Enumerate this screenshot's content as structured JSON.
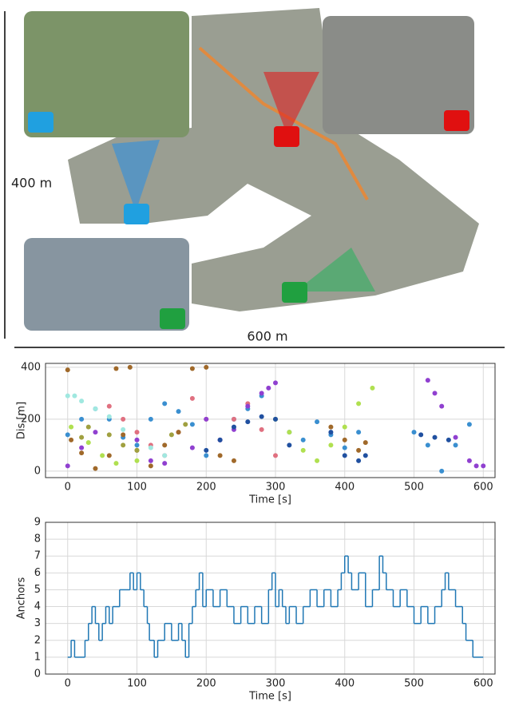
{
  "map": {
    "height_label": "400 m",
    "width_label": "600 m"
  },
  "chart_data": [
    {
      "type": "scatter",
      "y_label": "Dis [m]",
      "x_label": "Time [s]",
      "xlim": [
        -32,
        617
      ],
      "ylim": [
        -25,
        415
      ],
      "xticks": [
        0,
        100,
        200,
        300,
        400,
        500,
        600
      ],
      "yticks": [
        0,
        200,
        400
      ],
      "grid": true,
      "series": [
        {
          "color": "#3a8fd0",
          "x": [
            0,
            20,
            40,
            60,
            80,
            100,
            120,
            140,
            160,
            180,
            200,
            220,
            240,
            260,
            280,
            300,
            320,
            340,
            360,
            380,
            400,
            420,
            500,
            520,
            540,
            560,
            580
          ],
          "values": [
            140,
            200,
            240,
            200,
            130,
            100,
            200,
            260,
            230,
            180,
            60,
            120,
            200,
            240,
            290,
            200,
            150,
            120,
            190,
            140,
            90,
            150,
            150,
            100,
            0,
            100,
            180
          ]
        },
        {
          "color": "#e07080",
          "x": [
            60,
            80,
            100,
            120,
            140,
            160,
            180,
            200,
            220,
            240,
            260,
            280,
            300
          ],
          "values": [
            250,
            200,
            150,
            100,
            60,
            150,
            280,
            200,
            120,
            200,
            260,
            160,
            60
          ]
        },
        {
          "color": "#a0e8e0",
          "x": [
            0,
            10,
            20,
            40,
            60,
            80,
            100,
            120,
            140
          ],
          "values": [
            290,
            290,
            270,
            240,
            210,
            160,
            120,
            90,
            60
          ]
        },
        {
          "color": "#9040d0",
          "x": [
            0,
            20,
            40,
            100,
            120,
            140,
            180,
            200,
            220,
            240,
            260,
            280,
            290,
            300,
            520,
            530,
            540,
            560,
            580,
            590,
            600
          ],
          "values": [
            20,
            90,
            150,
            120,
            40,
            30,
            90,
            200,
            120,
            160,
            250,
            300,
            320,
            340,
            350,
            300,
            250,
            130,
            40,
            20,
            20
          ]
        },
        {
          "color": "#a0692a",
          "x": [
            0,
            5,
            20,
            40,
            60,
            70,
            80,
            90,
            100,
            120,
            140,
            160,
            180,
            200,
            220,
            240,
            380,
            400,
            420,
            430
          ],
          "values": [
            390,
            120,
            70,
            10,
            60,
            395,
            140,
            400,
            80,
            20,
            100,
            150,
            395,
            400,
            60,
            40,
            170,
            120,
            80,
            110
          ]
        },
        {
          "color": "#b0e050",
          "x": [
            5,
            30,
            50,
            70,
            100,
            300,
            320,
            340,
            360,
            380,
            400,
            420,
            440
          ],
          "values": [
            170,
            110,
            60,
            30,
            40,
            200,
            150,
            80,
            40,
            100,
            170,
            260,
            320
          ]
        },
        {
          "color": "#a0a040",
          "x": [
            20,
            30,
            60,
            80,
            100,
            150,
            170
          ],
          "values": [
            130,
            170,
            140,
            100,
            80,
            140,
            180
          ]
        },
        {
          "color": "#2050a0",
          "x": [
            200,
            220,
            240,
            260,
            280,
            300,
            320,
            380,
            400,
            420,
            430,
            510,
            530,
            550
          ],
          "values": [
            80,
            120,
            170,
            190,
            210,
            200,
            100,
            150,
            60,
            40,
            60,
            140,
            130,
            120
          ]
        }
      ]
    },
    {
      "type": "step",
      "y_label": "Anchors",
      "x_label": "Time [s]",
      "xlim": [
        -32,
        617
      ],
      "ylim": [
        0,
        9
      ],
      "xticks": [
        0,
        100,
        200,
        300,
        400,
        500,
        600
      ],
      "yticks": [
        0,
        1,
        2,
        3,
        4,
        5,
        6,
        7,
        8,
        9
      ],
      "grid": true,
      "color": "#1f77b4",
      "x": [
        0,
        5,
        10,
        25,
        30,
        35,
        40,
        45,
        50,
        55,
        60,
        65,
        75,
        90,
        95,
        100,
        105,
        110,
        115,
        118,
        125,
        130,
        140,
        150,
        160,
        165,
        170,
        175,
        180,
        185,
        190,
        195,
        200,
        210,
        220,
        230,
        240,
        250,
        260,
        270,
        280,
        290,
        295,
        300,
        305,
        310,
        315,
        320,
        330,
        340,
        350,
        360,
        370,
        380,
        390,
        395,
        400,
        405,
        410,
        420,
        430,
        440,
        450,
        455,
        460,
        470,
        480,
        490,
        500,
        510,
        520,
        530,
        540,
        545,
        550,
        560,
        570,
        575,
        585,
        600
      ],
      "values": [
        1,
        2,
        1,
        2,
        3,
        4,
        3,
        2,
        3,
        4,
        3,
        4,
        5,
        6,
        5,
        6,
        5,
        4,
        3,
        2,
        1,
        2,
        3,
        2,
        3,
        2,
        1,
        3,
        4,
        5,
        6,
        4,
        5,
        4,
        5,
        4,
        3,
        4,
        3,
        4,
        3,
        5,
        6,
        4,
        5,
        4,
        3,
        4,
        3,
        4,
        5,
        4,
        5,
        4,
        5,
        6,
        7,
        6,
        5,
        6,
        4,
        5,
        7,
        6,
        5,
        4,
        5,
        4,
        3,
        4,
        3,
        4,
        5,
        6,
        5,
        4,
        3,
        2,
        1,
        1
      ]
    }
  ]
}
